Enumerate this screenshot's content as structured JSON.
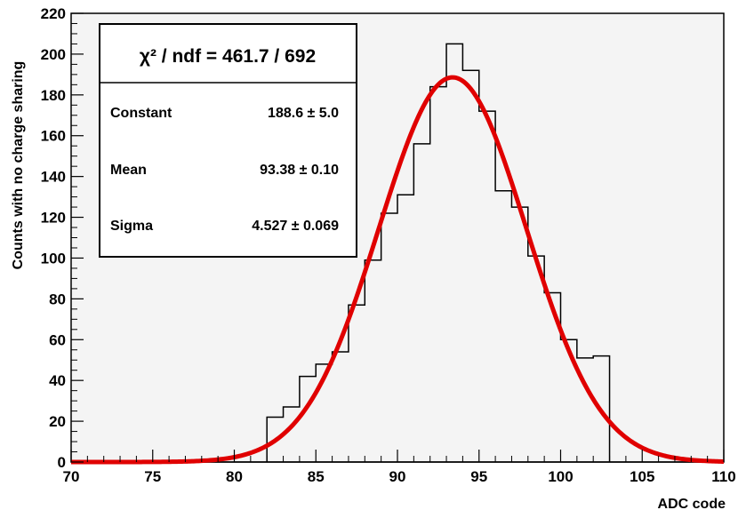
{
  "chart_data": {
    "type": "bar",
    "xlabel": "ADC code",
    "ylabel": "Counts with no charge sharing",
    "xlim": [
      70,
      110
    ],
    "ylim": [
      0,
      220
    ],
    "x_ticks": [
      70,
      75,
      80,
      85,
      90,
      95,
      100,
      105,
      110
    ],
    "y_ticks": [
      0,
      20,
      40,
      60,
      80,
      100,
      120,
      140,
      160,
      180,
      200,
      220
    ],
    "bin_width": 1,
    "histogram": {
      "bin_low_edges": [
        82,
        83,
        84,
        85,
        86,
        87,
        88,
        89,
        90,
        91,
        92,
        93,
        94,
        95,
        96,
        97,
        98,
        99,
        100,
        101,
        102
      ],
      "counts": [
        22,
        27,
        42,
        48,
        54,
        77,
        99,
        122,
        131,
        156,
        184,
        205,
        192,
        172,
        133,
        125,
        101,
        83,
        60,
        51,
        52
      ]
    },
    "fit": {
      "function": "gaus",
      "color": "#e00000",
      "constant": 188.6,
      "mean": 93.38,
      "sigma": 4.527
    },
    "grid": false,
    "legend": "top-left"
  },
  "stats_box": {
    "header": "χ² / ndf = 461.7 / 692",
    "rows": [
      {
        "label": "Constant",
        "value": "188.6 ± 5.0"
      },
      {
        "label": "Mean",
        "value": "93.38 ± 0.10"
      },
      {
        "label": "Sigma",
        "value": "4.527 ± 0.069"
      }
    ]
  },
  "colors": {
    "frame_bg": "#f4f4f4",
    "histogram": "#000000",
    "fit": "#e00000"
  }
}
